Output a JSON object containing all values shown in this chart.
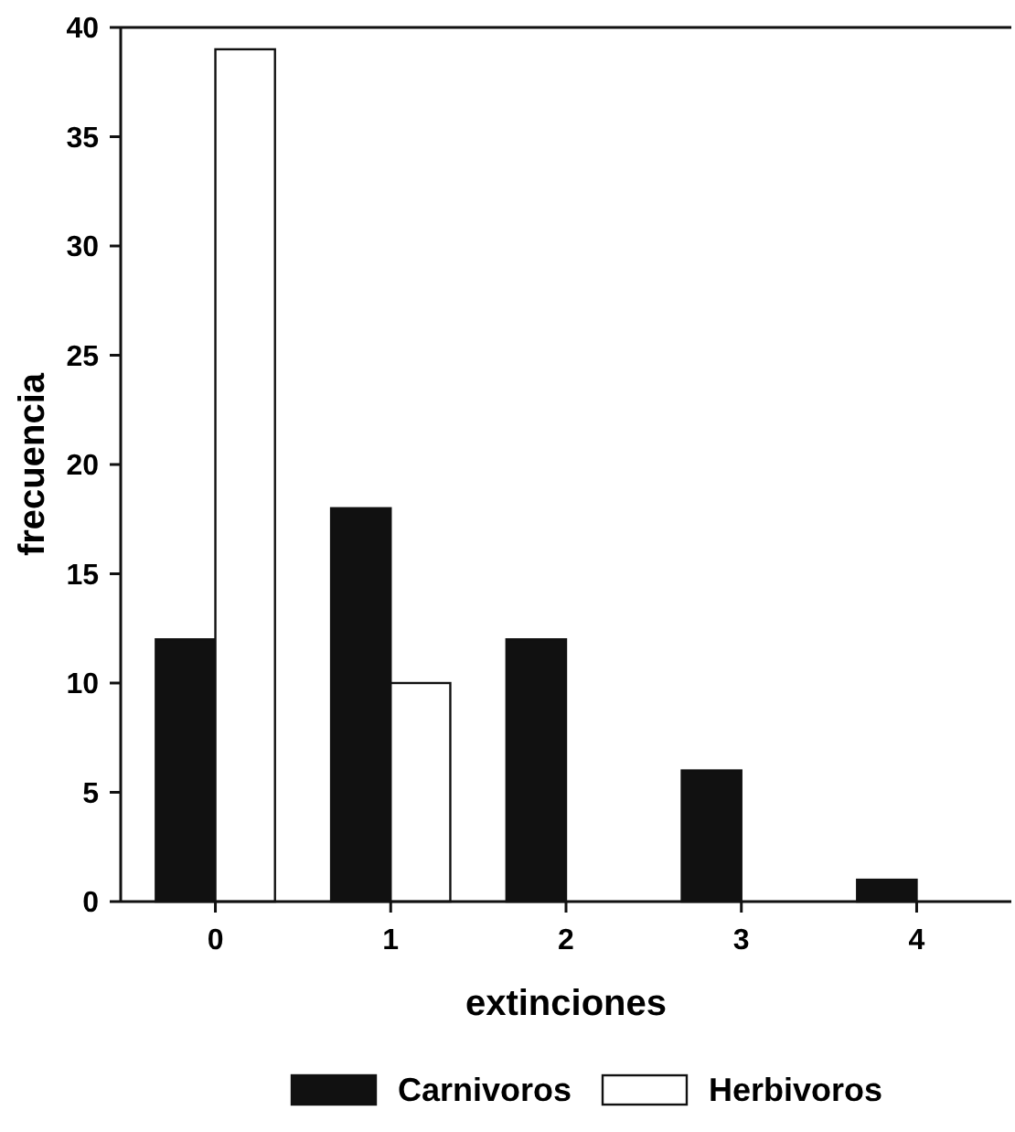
{
  "chart_data": {
    "type": "bar",
    "xlabel": "extinciones",
    "ylabel": "frecuencia",
    "categories": [
      "0",
      "1",
      "2",
      "3",
      "4"
    ],
    "series": [
      {
        "name": "Carnivoros",
        "color": "#111111",
        "values": [
          12,
          18,
          12,
          6,
          1
        ]
      },
      {
        "name": "Herbivoros",
        "color": "#ffffff",
        "values": [
          39,
          10,
          0,
          0,
          0
        ]
      }
    ],
    "ylim": [
      0,
      40
    ],
    "yticks": [
      0,
      5,
      10,
      15,
      20,
      25,
      30,
      35,
      40
    ],
    "grid": false,
    "legend": "bottom"
  }
}
